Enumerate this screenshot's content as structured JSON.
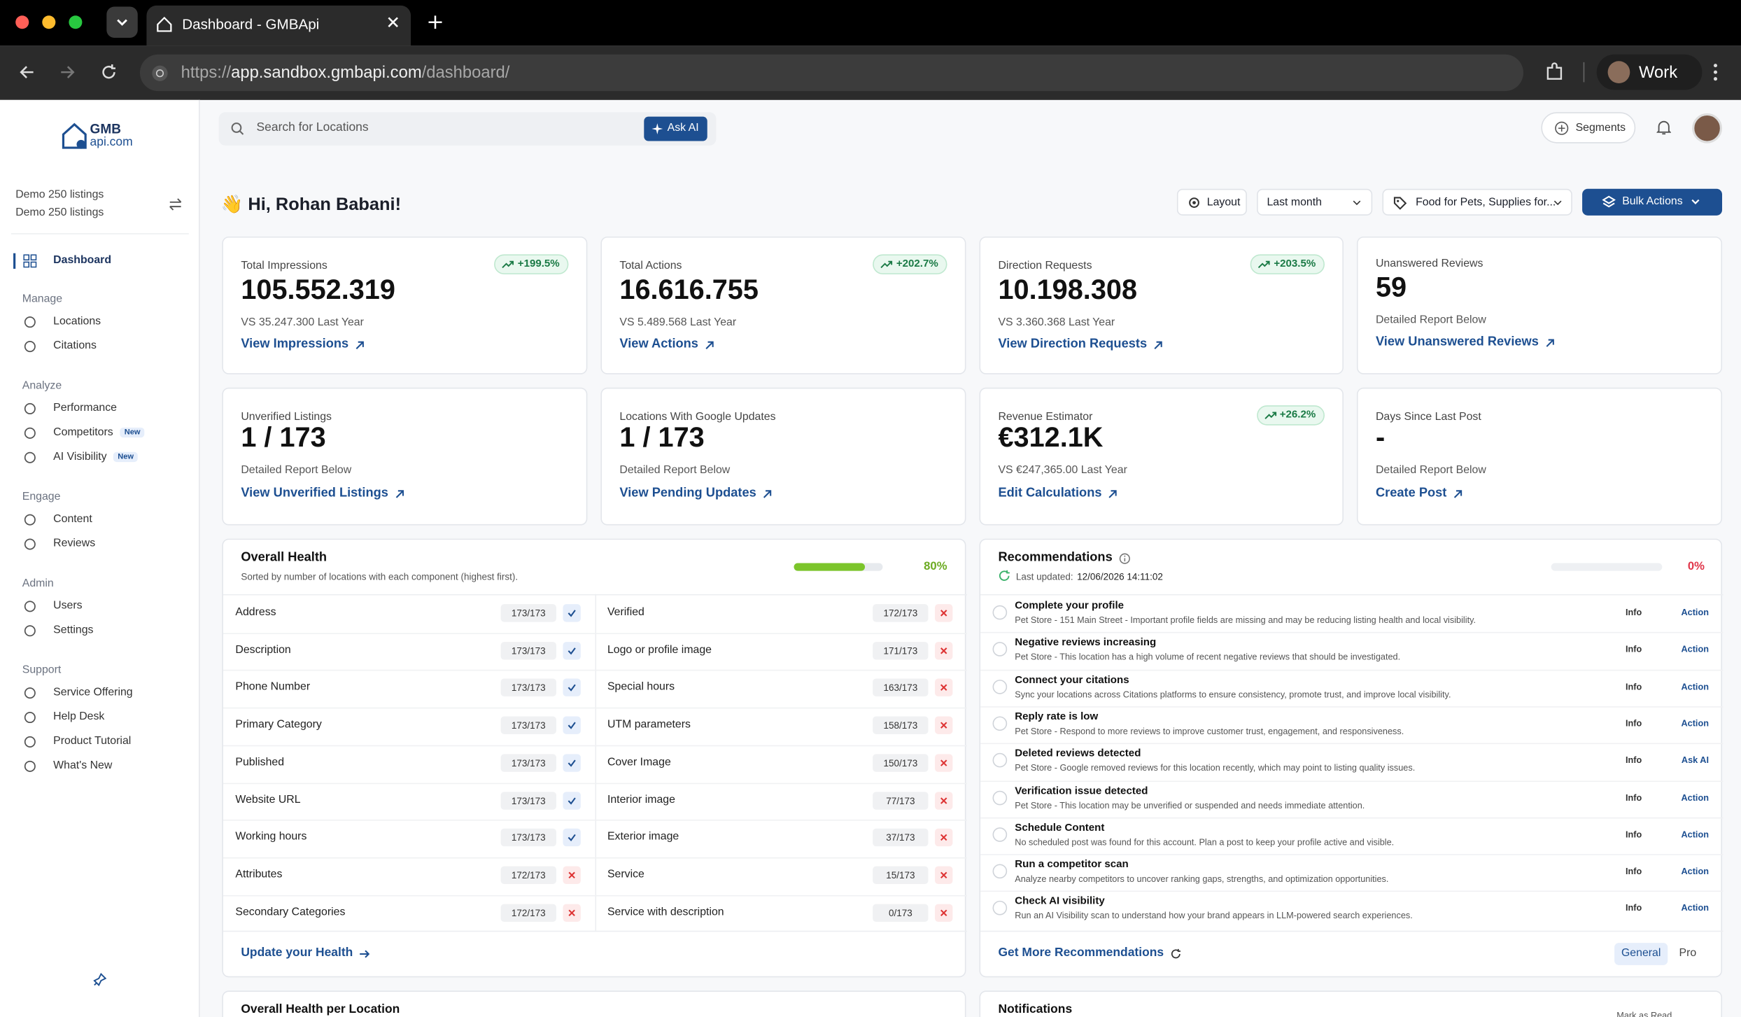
{
  "browser": {
    "tab_title": "Dashboard - GMBApi",
    "url_scheme": "https://",
    "url_host": "app.sandbox.gmbapi.com",
    "url_path": "/dashboard/",
    "profile": "Work"
  },
  "sidebar": {
    "logo_top": "GMB",
    "logo_bottom": "api.com",
    "account": [
      "Demo 250 listings",
      "Demo 250 listings"
    ],
    "home": "Dashboard",
    "sections": [
      {
        "label": "Manage",
        "items": [
          {
            "name": "Locations"
          },
          {
            "name": "Citations"
          }
        ]
      },
      {
        "label": "Analyze",
        "items": [
          {
            "name": "Performance"
          },
          {
            "name": "Competitors",
            "badge": "New"
          },
          {
            "name": "AI Visibility",
            "badge": "New"
          }
        ]
      },
      {
        "label": "Engage",
        "items": [
          {
            "name": "Content"
          },
          {
            "name": "Reviews"
          }
        ]
      },
      {
        "label": "Admin",
        "items": [
          {
            "name": "Users"
          },
          {
            "name": "Settings"
          }
        ]
      },
      {
        "label": "Support",
        "items": [
          {
            "name": "Service Offering"
          },
          {
            "name": "Help Desk"
          },
          {
            "name": "Product Tutorial"
          },
          {
            "name": "What's New"
          }
        ]
      }
    ]
  },
  "header": {
    "search_placeholder": "Search for Locations",
    "ask_ai": "Ask AI",
    "segments": "Segments"
  },
  "greeting": "👋 Hi, Rohan Babani!",
  "toolbar": {
    "layout": "Layout",
    "period": "Last month",
    "category": "Food for Pets, Supplies for...",
    "bulk": "Bulk Actions"
  },
  "cards": [
    {
      "label": "Total Impressions",
      "value": "105.552.319",
      "badge": "+199.5%",
      "sub": "VS 35.247.300 Last Year",
      "link": "View Impressions"
    },
    {
      "label": "Total Actions",
      "value": "16.616.755",
      "badge": "+202.7%",
      "sub": "VS 5.489.568 Last Year",
      "link": "View Actions"
    },
    {
      "label": "Direction Requests",
      "value": "10.198.308",
      "badge": "+203.5%",
      "sub": "VS 3.360.368 Last Year",
      "link": "View Direction Requests"
    },
    {
      "label": "Unanswered Reviews",
      "value": "59",
      "sub": "Detailed Report Below",
      "link": "View Unanswered Reviews"
    },
    {
      "label": "Unverified Listings",
      "value": "1 / 173",
      "sub": "Detailed Report Below",
      "link": "View Unverified Listings"
    },
    {
      "label": "Locations With Google Updates",
      "value": "1 / 173",
      "sub": "Detailed Report Below",
      "link": "View Pending Updates"
    },
    {
      "label": "Revenue Estimator",
      "value": "€312.1K",
      "badge": "+26.2%",
      "sub": "VS €247,365.00 Last Year",
      "link": "Edit Calculations"
    },
    {
      "label": "Days Since Last Post",
      "value": "-",
      "sub": "Detailed Report Below",
      "link": "Create Post"
    }
  ],
  "health": {
    "title": "Overall Health",
    "subtitle": "Sorted by number of locations with each component (highest first).",
    "progress": 80,
    "progress_label": "80%",
    "left": [
      {
        "name": "Address",
        "count": "173/173",
        "ok": true
      },
      {
        "name": "Description",
        "count": "173/173",
        "ok": true
      },
      {
        "name": "Phone Number",
        "count": "173/173",
        "ok": true
      },
      {
        "name": "Primary Category",
        "count": "173/173",
        "ok": true
      },
      {
        "name": "Published",
        "count": "173/173",
        "ok": true
      },
      {
        "name": "Website URL",
        "count": "173/173",
        "ok": true
      },
      {
        "name": "Working hours",
        "count": "173/173",
        "ok": true
      },
      {
        "name": "Attributes",
        "count": "172/173",
        "ok": false
      },
      {
        "name": "Secondary Categories",
        "count": "172/173",
        "ok": false
      }
    ],
    "right": [
      {
        "name": "Verified",
        "count": "172/173",
        "ok": false
      },
      {
        "name": "Logo or profile image",
        "count": "171/173",
        "ok": false
      },
      {
        "name": "Special hours",
        "count": "163/173",
        "ok": false
      },
      {
        "name": "UTM parameters",
        "count": "158/173",
        "ok": false
      },
      {
        "name": "Cover Image",
        "count": "150/173",
        "ok": false
      },
      {
        "name": "Interior image",
        "count": "77/173",
        "ok": false
      },
      {
        "name": "Exterior image",
        "count": "37/173",
        "ok": false
      },
      {
        "name": "Service",
        "count": "15/173",
        "ok": false
      },
      {
        "name": "Service with description",
        "count": "0/173",
        "ok": false
      }
    ],
    "footer": "Update your Health"
  },
  "recommendations": {
    "title": "Recommendations",
    "updated_label": "Last updated:",
    "updated": "12/06/2026 14:11:02",
    "progress": 0,
    "progress_label": "0%",
    "items": [
      {
        "title": "Complete your profile",
        "desc": "Pet Store - 151 Main Street - Important profile fields are missing and may be reducing listing health and local visibility.",
        "tag": "Info",
        "action": "Action"
      },
      {
        "title": "Negative reviews increasing",
        "desc": "Pet Store - This location has a high volume of recent negative reviews that should be investigated.",
        "tag": "Info",
        "action": "Action"
      },
      {
        "title": "Connect your citations",
        "desc": "Sync your locations across Citations platforms to ensure consistency, promote trust, and improve local visibility.",
        "tag": "Info",
        "action": "Action"
      },
      {
        "title": "Reply rate is low",
        "desc": "Pet Store - Respond to more reviews to improve customer trust, engagement, and responsiveness.",
        "tag": "Info",
        "action": "Action"
      },
      {
        "title": "Deleted reviews detected",
        "desc": "Pet Store - Google removed reviews for this location recently, which may point to listing quality issues.",
        "tag": "Info",
        "action": "Ask AI"
      },
      {
        "title": "Verification issue detected",
        "desc": "Pet Store - This location may be unverified or suspended and needs immediate attention.",
        "tag": "Info",
        "action": "Action"
      },
      {
        "title": "Schedule Content",
        "desc": "No scheduled post was found for this account. Plan a post to keep your profile active and visible.",
        "tag": "Info",
        "action": "Action"
      },
      {
        "title": "Run a competitor scan",
        "desc": "Analyze nearby competitors to uncover ranking gaps, strengths, and optimization opportunities.",
        "tag": "Info",
        "action": "Action"
      },
      {
        "title": "Check AI visibility",
        "desc": "Run an AI Visibility scan to understand how your brand appears in LLM-powered search experiences.",
        "tag": "Info",
        "action": "Action"
      }
    ],
    "footer": "Get More Recommendations",
    "tabs": [
      "General",
      "Pro"
    ]
  },
  "bottom": {
    "health_per_location": "Overall Health per Location",
    "notifications": "Notifications",
    "mark_read": "Mark as Read"
  }
}
